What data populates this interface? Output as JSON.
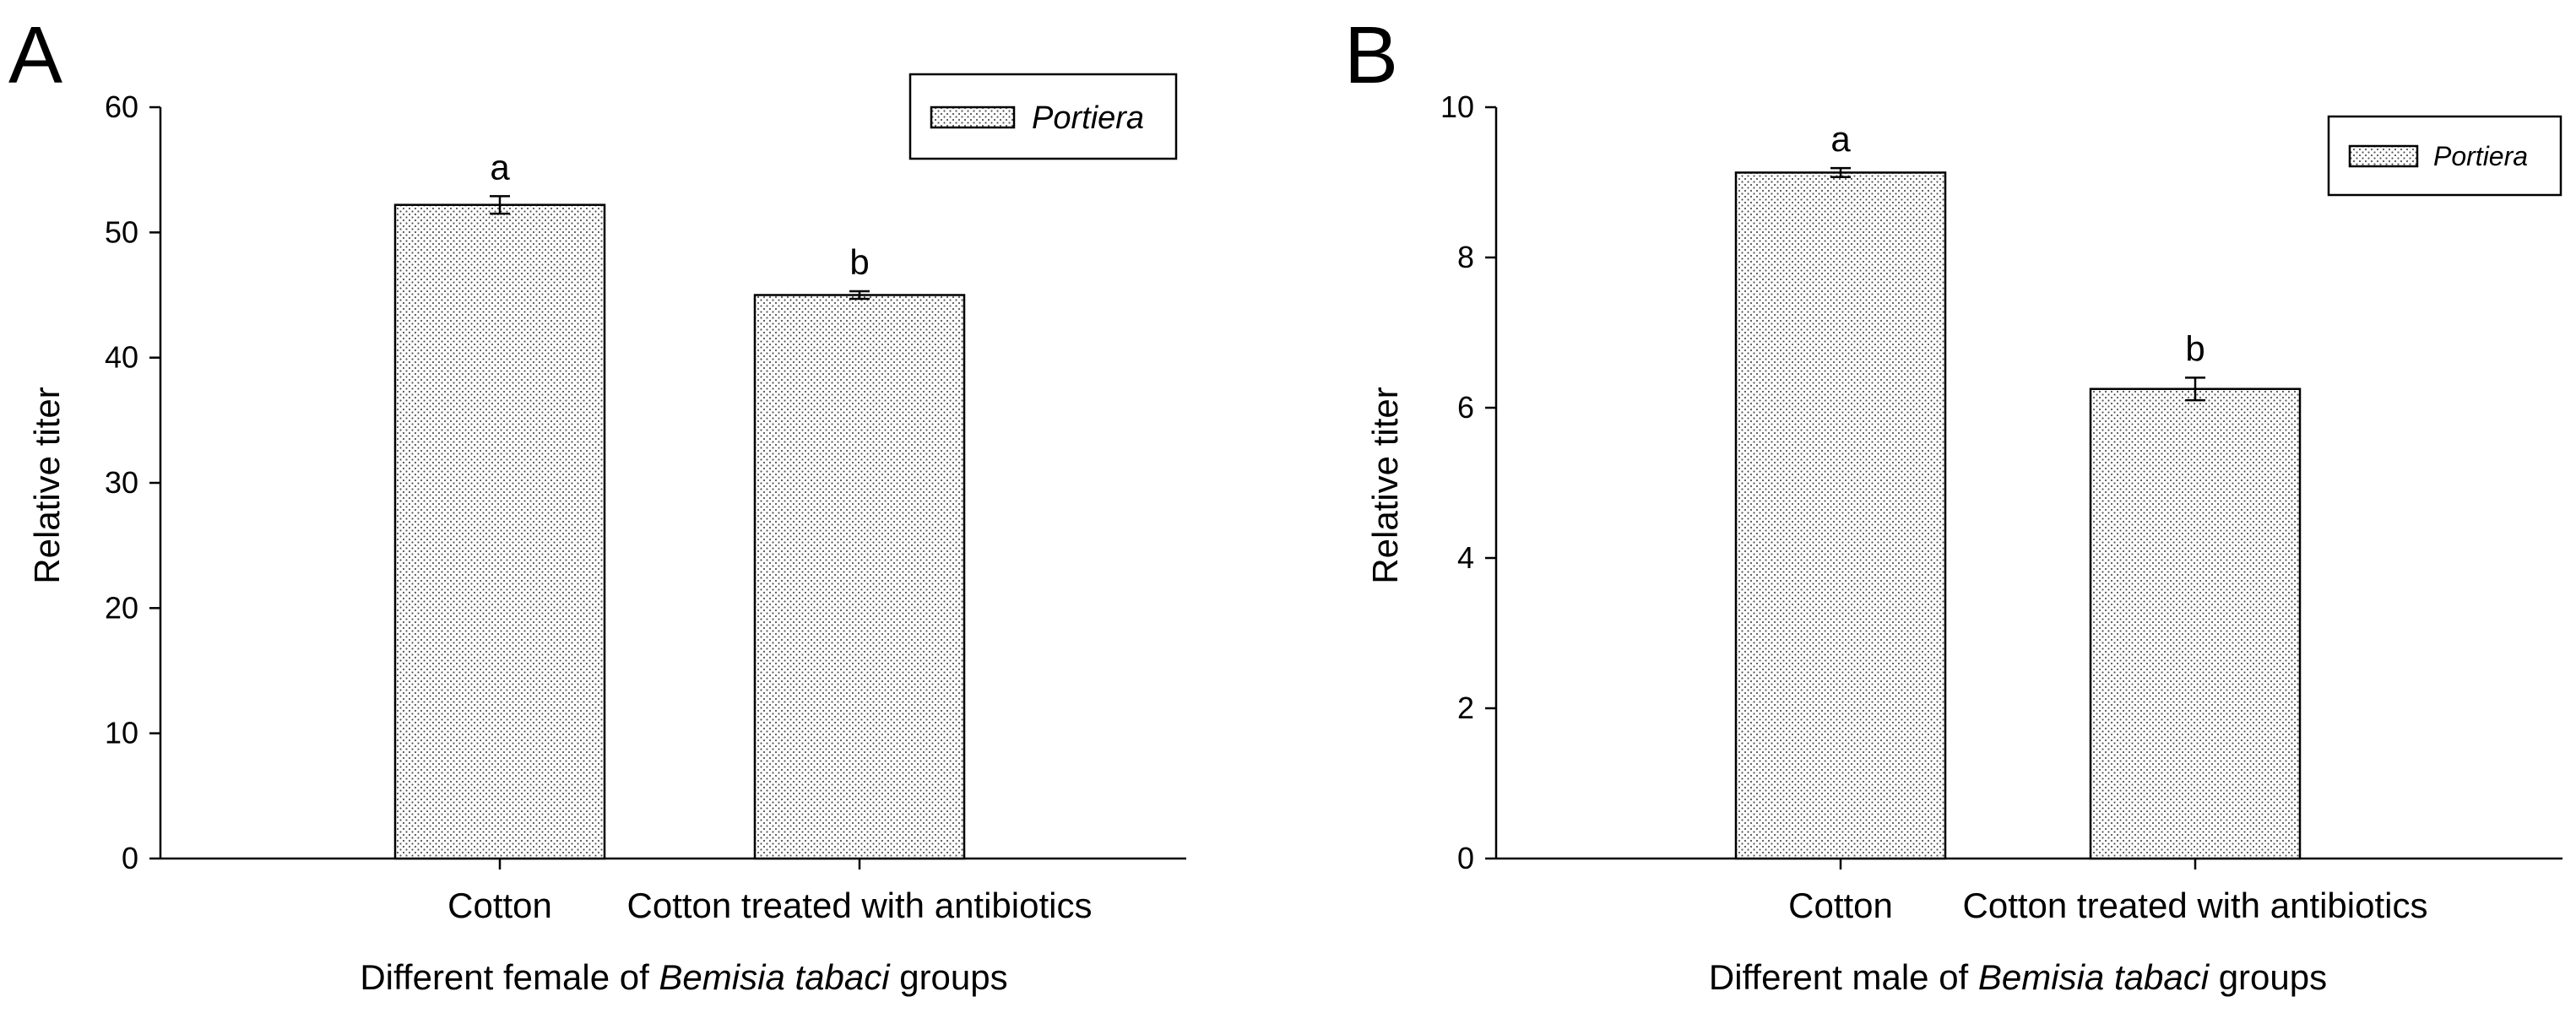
{
  "chart_data": [
    {
      "panel": "A",
      "type": "bar",
      "categories": [
        "Cotton",
        "Cotton treated with antibiotics"
      ],
      "series": [
        {
          "name": "Portiera",
          "values": [
            52.2,
            45.0
          ],
          "errors": [
            0.7,
            0.3
          ]
        }
      ],
      "significance": [
        "a",
        "b"
      ],
      "ylabel": "Relative titer",
      "xlabel": {
        "pre": "Different female of ",
        "italic": "Bemisia tabaci",
        "post": " groups"
      },
      "ylim": [
        0,
        60
      ],
      "yticks": [
        0,
        10,
        20,
        30,
        40,
        50,
        60
      ],
      "legend": {
        "label": "Portiera",
        "position": "top-right"
      }
    },
    {
      "panel": "B",
      "type": "bar",
      "categories": [
        "Cotton",
        "Cotton treated with antibiotics"
      ],
      "series": [
        {
          "name": "Portiera",
          "values": [
            9.13,
            6.25
          ],
          "errors": [
            0.06,
            0.15
          ]
        }
      ],
      "significance": [
        "a",
        "b"
      ],
      "ylabel": "Relative titer",
      "xlabel": {
        "pre": "Different male of ",
        "italic": "Bemisia tabaci",
        "post": " groups"
      },
      "ylim": [
        0,
        10
      ],
      "yticks": [
        0,
        2,
        4,
        6,
        8,
        10
      ],
      "legend": {
        "label": "Portiera",
        "position": "top-right"
      }
    }
  ]
}
